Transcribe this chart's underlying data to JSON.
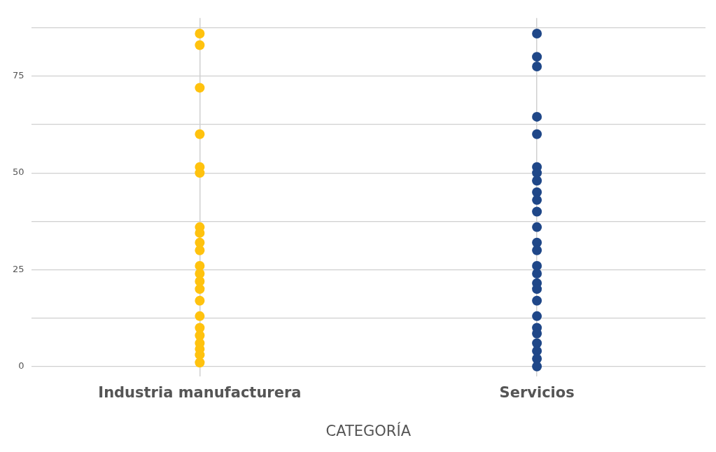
{
  "chart_data": {
    "type": "scatter",
    "xlabel": "CATEGORÍA",
    "categories": [
      "Industria manufacturera",
      "Servicios"
    ],
    "ylim": [
      -2.5,
      90
    ],
    "yticks": [
      0,
      {
        "value": 12.5,
        "label": null
      },
      25,
      {
        "value": 37.5,
        "label": null
      },
      50,
      {
        "value": 62.5,
        "label": null
      },
      75,
      {
        "value": 87.5,
        "label": null
      }
    ],
    "grid": true,
    "legend": false,
    "marker": "circle",
    "series": [
      {
        "color": "#ffc20e",
        "x": [
          "Industria manufacturera",
          "Industria manufacturera",
          "Industria manufacturera",
          "Industria manufacturera",
          "Industria manufacturera",
          "Industria manufacturera",
          "Industria manufacturera",
          "Industria manufacturera",
          "Industria manufacturera",
          "Industria manufacturera",
          "Industria manufacturera",
          "Industria manufacturera",
          "Industria manufacturera",
          "Industria manufacturera",
          "Industria manufacturera",
          "Industria manufacturera",
          "Industria manufacturera",
          "Industria manufacturera",
          "Industria manufacturera",
          "Industria manufacturera",
          "Industria manufacturera",
          "Industria manufacturera",
          "Industria manufacturera",
          "Industria manufacturera",
          "Industria manufacturera",
          "Industria manufacturera",
          "Industria manufacturera",
          "Industria manufacturera",
          "Industria manufacturera"
        ],
        "values": [
          86,
          83,
          72,
          60,
          51.5,
          50,
          36,
          34.5,
          32,
          30,
          26,
          24,
          22,
          20,
          17,
          13,
          10,
          8,
          6,
          4.5,
          3,
          1,
          null,
          null,
          null,
          null,
          null,
          null,
          null
        ]
      },
      {
        "color": "#1f4788",
        "x": [
          "Servicios",
          "Servicios",
          "Servicios",
          "Servicios",
          "Servicios",
          "Servicios",
          "Servicios",
          "Servicios",
          "Servicios",
          "Servicios",
          "Servicios",
          "Servicios",
          "Servicios",
          "Servicios",
          "Servicios",
          "Servicios",
          "Servicios",
          "Servicios",
          "Servicios",
          "Servicios",
          "Servicios",
          "Servicios",
          "Servicios",
          "Servicios",
          "Servicios",
          "Servicios",
          "Servicios",
          "Servicios",
          "Servicios",
          "Servicios",
          "Servicios",
          "Servicios"
        ],
        "values": [
          86,
          80,
          77.5,
          64.5,
          60,
          51.5,
          50,
          48,
          45,
          43,
          40,
          36,
          32,
          30,
          26,
          24,
          21.5,
          20,
          17,
          13,
          10,
          8.5,
          6,
          4,
          2,
          0,
          null,
          null,
          null,
          null,
          null,
          null
        ]
      }
    ]
  }
}
